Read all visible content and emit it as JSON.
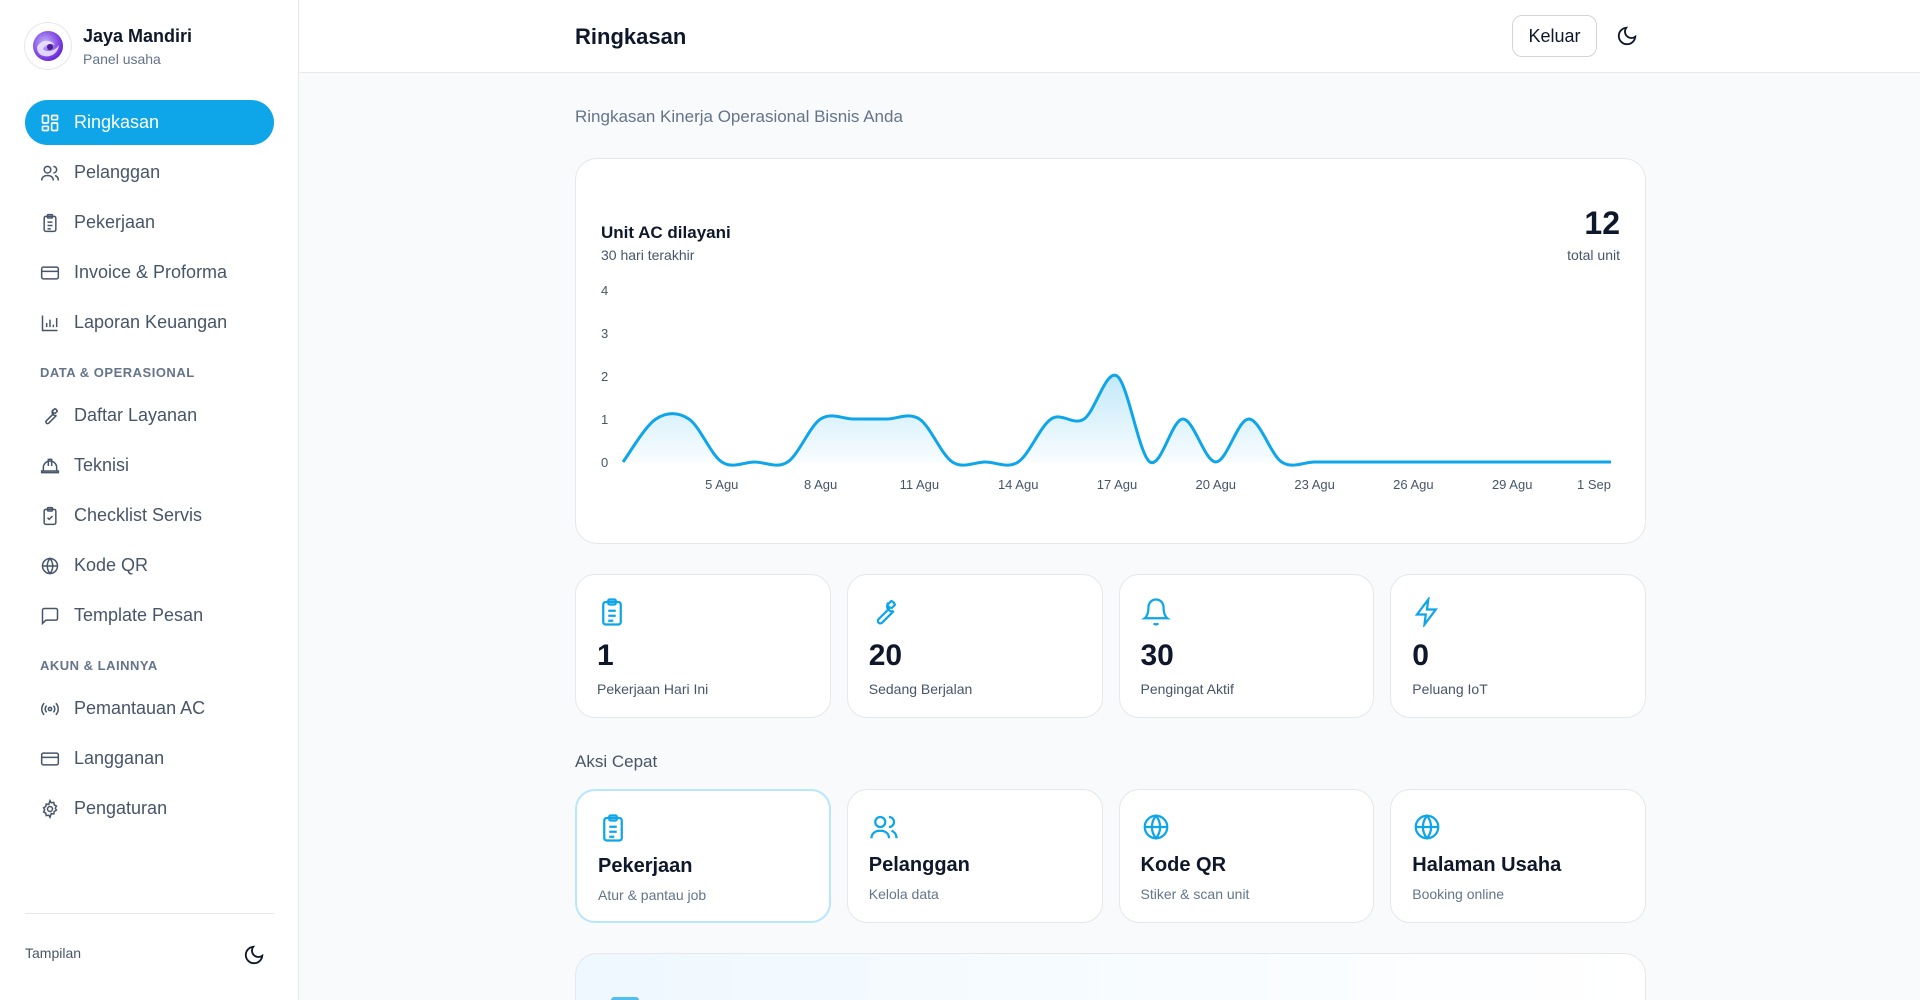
{
  "brand": {
    "name": "Jaya Mandiri",
    "subtitle": "Panel usaha"
  },
  "sidebar": {
    "main_items": [
      {
        "label": "Ringkasan",
        "icon": "dashboard-icon",
        "active": true
      },
      {
        "label": "Pelanggan",
        "icon": "users-icon"
      },
      {
        "label": "Pekerjaan",
        "icon": "clipboard-icon"
      },
      {
        "label": "Invoice & Proforma",
        "icon": "credit-card-icon"
      },
      {
        "label": "Laporan Keuangan",
        "icon": "bar-chart-icon"
      }
    ],
    "section_data": "DATA & OPERASIONAL",
    "data_items": [
      {
        "label": "Daftar Layanan",
        "icon": "wrench-icon"
      },
      {
        "label": "Teknisi",
        "icon": "hard-hat-icon"
      },
      {
        "label": "Checklist Servis",
        "icon": "clipboard-check-icon"
      },
      {
        "label": "Kode QR",
        "icon": "globe-icon"
      },
      {
        "label": "Template Pesan",
        "icon": "message-icon"
      }
    ],
    "section_account": "AKUN & LAINNYA",
    "account_items": [
      {
        "label": "Pemantauan AC",
        "icon": "radio-signal-icon"
      },
      {
        "label": "Langganan",
        "icon": "credit-card-icon"
      },
      {
        "label": "Pengaturan",
        "icon": "gear-icon"
      }
    ],
    "appearance_label": "Tampilan"
  },
  "header": {
    "title": "Ringkasan",
    "logout_label": "Keluar"
  },
  "main": {
    "subtitle": "Ringkasan Kinerja Operasional Bisnis Anda",
    "chart_card": {
      "title": "Unit AC dilayani",
      "period": "30 hari terakhir",
      "total_value": "12",
      "total_label": "total unit"
    },
    "stats": [
      {
        "value": "1",
        "label": "Pekerjaan Hari Ini",
        "icon": "clipboard-icon"
      },
      {
        "value": "20",
        "label": "Sedang Berjalan",
        "icon": "wrench-icon"
      },
      {
        "value": "30",
        "label": "Pengingat Aktif",
        "icon": "bell-icon"
      },
      {
        "value": "0",
        "label": "Peluang IoT",
        "icon": "lightning-icon"
      }
    ],
    "quick_title": "Aksi Cepat",
    "quick_actions": [
      {
        "label": "Pekerjaan",
        "sub": "Atur & pantau job",
        "icon": "clipboard-icon"
      },
      {
        "label": "Pelanggan",
        "sub": "Kelola data",
        "icon": "users-icon"
      },
      {
        "label": "Kode QR",
        "sub": "Stiker & scan unit",
        "icon": "globe-icon"
      },
      {
        "label": "Halaman Usaha",
        "sub": "Booking online",
        "icon": "globe-icon"
      }
    ]
  },
  "colors": {
    "accent": "#0ea5e9",
    "text": "#0f172a",
    "muted": "#64748b"
  },
  "chart_data": {
    "type": "area",
    "title": "Unit AC dilayani",
    "xlabel": "",
    "ylabel": "",
    "ylim": [
      0,
      4
    ],
    "y_ticks": [
      "0",
      "1",
      "2",
      "3",
      "4"
    ],
    "x_tick_labels": [
      "5 Agu",
      "8 Agu",
      "11 Agu",
      "14 Agu",
      "17 Agu",
      "20 Agu",
      "23 Agu",
      "26 Agu",
      "29 Agu",
      "1 Sep"
    ],
    "x": [
      "2 Agu",
      "3 Agu",
      "4 Agu",
      "5 Agu",
      "6 Agu",
      "7 Agu",
      "8 Agu",
      "9 Agu",
      "10 Agu",
      "11 Agu",
      "12 Agu",
      "13 Agu",
      "14 Agu",
      "15 Agu",
      "16 Agu",
      "17 Agu",
      "18 Agu",
      "19 Agu",
      "20 Agu",
      "21 Agu",
      "22 Agu",
      "23 Agu",
      "24 Agu",
      "25 Agu",
      "26 Agu",
      "27 Agu",
      "28 Agu",
      "29 Agu",
      "30 Agu",
      "31 Agu",
      "1 Sep"
    ],
    "values": [
      0,
      1,
      1,
      0,
      0,
      0,
      1,
      1,
      1,
      1,
      0,
      0,
      0,
      1,
      1,
      2,
      0,
      1,
      0,
      1,
      0,
      0,
      0,
      0,
      0,
      0,
      0,
      0,
      0,
      0,
      0
    ],
    "grid": false,
    "legend": "none"
  }
}
